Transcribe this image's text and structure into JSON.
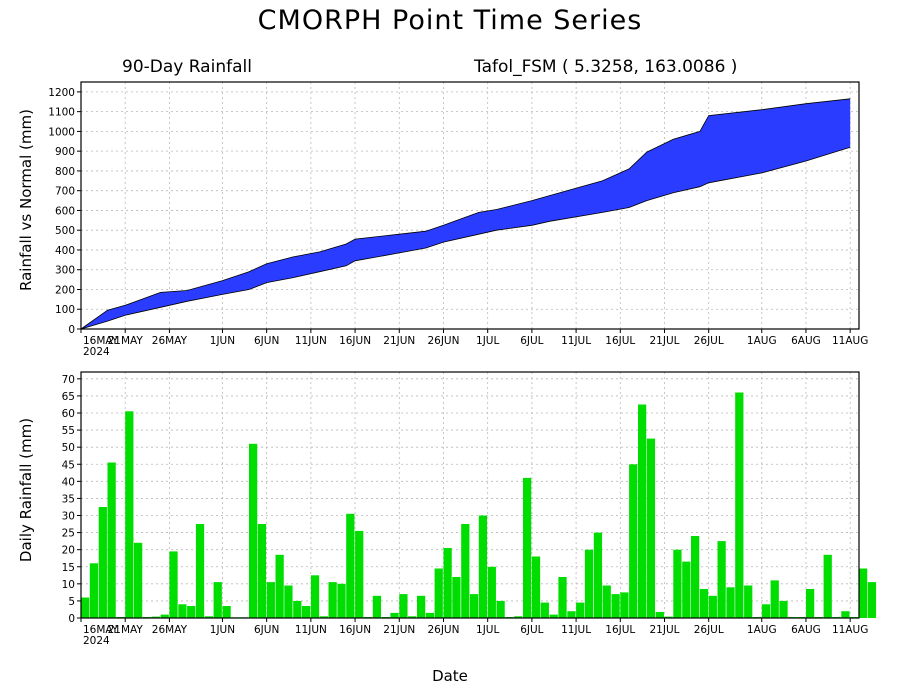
{
  "title": "CMORPH Point Time Series",
  "subtitle_left": "90-Day Rainfall",
  "subtitle_right": "Tafol_FSM ( 5.3258, 163.0086 )",
  "xlabel": "Date",
  "colors": {
    "cumulative_fill": "#2a3cff",
    "daily_bar": "#00dd00",
    "axes": "#000000"
  },
  "date_ticks": [
    {
      "day": 0,
      "label": "16MAY",
      "sub": "2024"
    },
    {
      "day": 5,
      "label": "21MAY"
    },
    {
      "day": 10,
      "label": "26MAY"
    },
    {
      "day": 16,
      "label": "1JUN"
    },
    {
      "day": 21,
      "label": "6JUN"
    },
    {
      "day": 26,
      "label": "11JUN"
    },
    {
      "day": 31,
      "label": "16JUN"
    },
    {
      "day": 36,
      "label": "21JUN"
    },
    {
      "day": 41,
      "label": "26JUN"
    },
    {
      "day": 46,
      "label": "1JUL"
    },
    {
      "day": 51,
      "label": "6JUL"
    },
    {
      "day": 56,
      "label": "11JUL"
    },
    {
      "day": 61,
      "label": "16JUL"
    },
    {
      "day": 66,
      "label": "21JUL"
    },
    {
      "day": 71,
      "label": "26JUL"
    },
    {
      "day": 77,
      "label": "1AUG"
    },
    {
      "day": 82,
      "label": "6AUG"
    },
    {
      "day": 87,
      "label": "11AUG"
    }
  ],
  "chart_data": [
    {
      "type": "area",
      "ylabel": "Rainfall vs Normal (mm)",
      "x_range": [
        "2024-05-16",
        "2024-08-11"
      ],
      "ylim": [
        0,
        1250
      ],
      "yticks": [
        0,
        100,
        200,
        300,
        400,
        500,
        600,
        700,
        800,
        900,
        1000,
        1100,
        1200
      ],
      "grid": true,
      "x_days": [
        0,
        3,
        5,
        9,
        12,
        16,
        19,
        21,
        24,
        27,
        30,
        31,
        36,
        39,
        41,
        45,
        47,
        51,
        53,
        59,
        62,
        64,
        67,
        70,
        71,
        77,
        82,
        87
      ],
      "series": [
        {
          "name": "",
          "values": [
            0,
            95,
            120,
            185,
            195,
            245,
            290,
            330,
            365,
            390,
            430,
            455,
            480,
            495,
            525,
            590,
            605,
            650,
            675,
            750,
            810,
            895,
            960,
            1000,
            1080,
            1110,
            1140,
            1165
          ]
        },
        {
          "name": "",
          "values": [
            0,
            40,
            70,
            110,
            140,
            175,
            200,
            235,
            260,
            290,
            320,
            345,
            385,
            410,
            440,
            480,
            500,
            525,
            545,
            590,
            615,
            650,
            690,
            720,
            740,
            790,
            850,
            920
          ]
        }
      ]
    },
    {
      "type": "bar",
      "ylabel": "Daily Rainfall (mm)",
      "x_range": [
        "2024-05-16",
        "2024-08-11"
      ],
      "ylim": [
        0,
        72
      ],
      "yticks": [
        0,
        5,
        10,
        15,
        20,
        25,
        30,
        35,
        40,
        45,
        50,
        55,
        60,
        65,
        70
      ],
      "grid": true,
      "values": [
        6,
        16,
        32.5,
        45.5,
        0.3,
        60.5,
        22,
        0.3,
        0.4,
        1,
        19.5,
        4,
        3.5,
        27.5,
        0.5,
        10.5,
        3.5,
        0.2,
        0.2,
        51,
        27.5,
        10.5,
        18.5,
        9.5,
        5,
        3.5,
        12.5,
        0.5,
        10.5,
        10,
        30.5,
        25.5,
        0.3,
        6.5,
        0.3,
        1.5,
        7,
        0.5,
        6.5,
        1.5,
        14.5,
        20.5,
        12,
        27.5,
        7,
        30,
        15,
        5,
        0.3,
        0.5,
        41,
        18,
        4.5,
        1,
        12,
        2,
        4.5,
        20,
        25,
        9.5,
        7,
        7.5,
        45,
        62.5,
        52.5,
        1.8,
        0.4,
        20,
        16.5,
        24,
        8.5,
        6.5,
        22.5,
        9,
        66,
        9.5,
        0.3,
        4,
        11,
        5,
        0.3,
        0.3,
        8.5,
        0.3,
        18.5,
        0.3,
        2,
        0.3,
        14.5,
        10.5
      ]
    }
  ]
}
